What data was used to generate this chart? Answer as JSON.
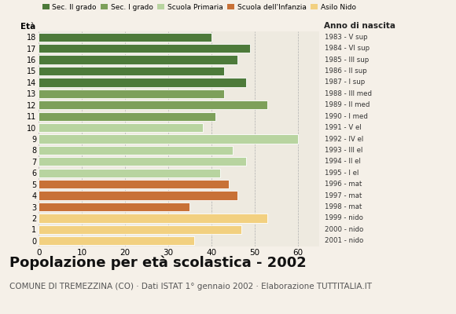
{
  "ages": [
    18,
    17,
    16,
    15,
    14,
    13,
    12,
    11,
    10,
    9,
    8,
    7,
    6,
    5,
    4,
    3,
    2,
    1,
    0
  ],
  "values": [
    40,
    49,
    46,
    43,
    48,
    43,
    53,
    41,
    38,
    60,
    45,
    48,
    42,
    44,
    46,
    35,
    53,
    47,
    36
  ],
  "right_labels": [
    "1983 - V sup",
    "1984 - VI sup",
    "1985 - III sup",
    "1986 - II sup",
    "1987 - I sup",
    "1988 - III med",
    "1989 - II med",
    "1990 - I med",
    "1991 - V el",
    "1992 - IV el",
    "1993 - III el",
    "1994 - II el",
    "1995 - I el",
    "1996 - mat",
    "1997 - mat",
    "1998 - mat",
    "1999 - nido",
    "2000 - nido",
    "2001 - nido"
  ],
  "colors": [
    "#4d7a3a",
    "#4d7a3a",
    "#4d7a3a",
    "#4d7a3a",
    "#4d7a3a",
    "#7da05a",
    "#7da05a",
    "#7da05a",
    "#b8d4a0",
    "#b8d4a0",
    "#b8d4a0",
    "#b8d4a0",
    "#b8d4a0",
    "#c87137",
    "#c87137",
    "#c87137",
    "#f2d080",
    "#f2d080",
    "#f2d080"
  ],
  "legend_labels": [
    "Sec. II grado",
    "Sec. I grado",
    "Scuola Primaria",
    "Scuola dell'Infanzia",
    "Asilo Nido"
  ],
  "legend_colors": [
    "#4d7a3a",
    "#7da05a",
    "#b8d4a0",
    "#c87137",
    "#f2d080"
  ],
  "title": "Popolazione per età scolastica - 2002",
  "subtitle": "COMUNE DI TREMEZZINA (CO) · Dati ISTAT 1° gennaio 2002 · Elaborazione TUTTITALIA.IT",
  "xlabel_left": "Età",
  "xlabel_right": "Anno di nascita",
  "xlim": [
    0,
    65
  ],
  "xticks": [
    0,
    10,
    20,
    30,
    40,
    50,
    60
  ],
  "bg_color": "#f5f0e8",
  "bar_bg_color": "#eeeae0",
  "grid_color": "#b0b0b0",
  "title_fontsize": 13,
  "subtitle_fontsize": 7.5,
  "bar_height": 0.78
}
